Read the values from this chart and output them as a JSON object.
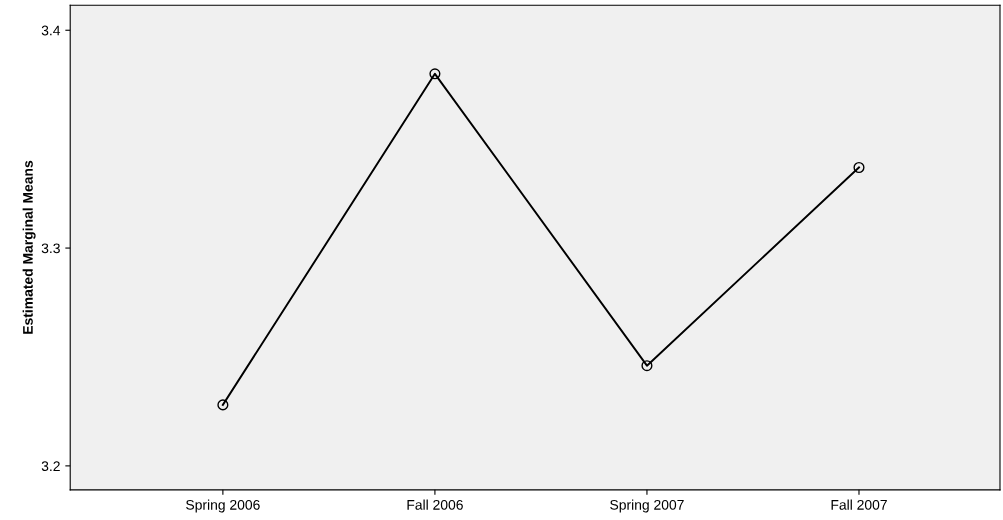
{
  "chart_data": {
    "type": "line",
    "ylabel": "Estimated Marginal Means",
    "categories": [
      "Spring 2006",
      "Fall 2006",
      "Spring 2007",
      "Fall 2007"
    ],
    "series": [
      {
        "color": "#000000",
        "values": [
          3.228,
          3.38,
          3.246,
          3.337
        ]
      }
    ],
    "ylim": [
      3.189,
      3.4115
    ],
    "yticks": [
      3.2,
      3.3,
      3.4
    ],
    "marker": "circle",
    "line_style": "solid",
    "grid": false,
    "legend": false
  }
}
